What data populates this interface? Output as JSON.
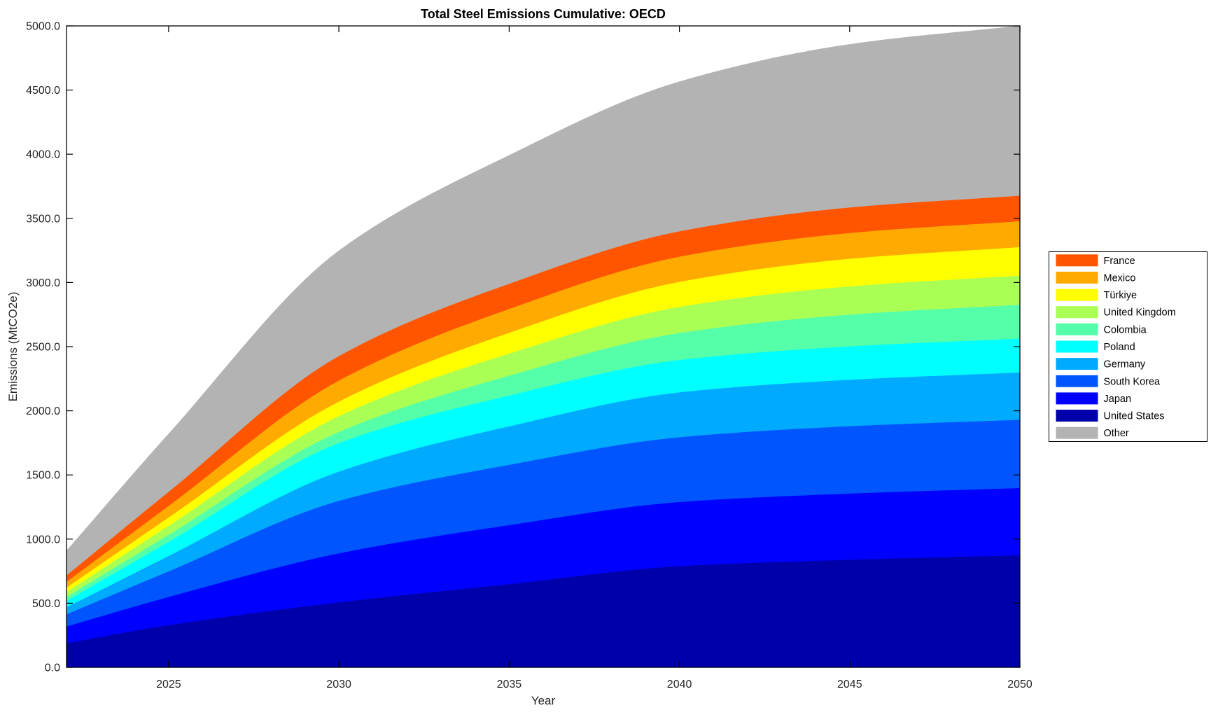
{
  "chart_data": {
    "type": "area",
    "stacked": true,
    "title": "Total Steel Emissions Cumulative: OECD",
    "xlabel": "Year",
    "ylabel": "Emissions (MtCO2e)",
    "xlim": [
      2022,
      2050
    ],
    "ylim": [
      0,
      5000
    ],
    "grid": false,
    "legend_position": "outside-right",
    "x": [
      2022,
      2025,
      2030,
      2035,
      2040,
      2045,
      2050
    ],
    "xtick_values": [
      2025,
      2030,
      2035,
      2040,
      2045,
      2050
    ],
    "xtick_labels": [
      "2025",
      "2030",
      "2035",
      "2040",
      "2045",
      "2050"
    ],
    "ytick_values": [
      0,
      500,
      1000,
      1500,
      2000,
      2500,
      3000,
      3500,
      4000,
      4500,
      5000
    ],
    "ytick_labels": [
      "0.0",
      "500.0",
      "1000.0",
      "1500.0",
      "2000.0",
      "2500.0",
      "3000.0",
      "3500.0",
      "4000.0",
      "4500.0",
      "5000.0"
    ],
    "series_bottom_to_top": [
      {
        "name": "United States",
        "color": "#0000AA",
        "values": [
          190,
          330,
          508,
          650,
          790,
          840,
          875
        ]
      },
      {
        "name": "Japan",
        "color": "#0000FF",
        "values": [
          130,
          220,
          382,
          460,
          500,
          516,
          524
        ]
      },
      {
        "name": "South Korea",
        "color": "#0055FF",
        "values": [
          95,
          200,
          409,
          470,
          505,
          525,
          532
        ]
      },
      {
        "name": "Germany",
        "color": "#00AAFF",
        "values": [
          55,
          120,
          228,
          300,
          350,
          362,
          369
        ]
      },
      {
        "name": "Poland",
        "color": "#00FFFF",
        "values": [
          50,
          110,
          222,
          240,
          252,
          260,
          264
        ]
      },
      {
        "name": "Colombia",
        "color": "#55FFAA",
        "values": [
          30,
          55,
          87,
          155,
          210,
          248,
          264
        ]
      },
      {
        "name": "United Kingdom",
        "color": "#AAFF55",
        "values": [
          38,
          70,
          124,
          172,
          204,
          220,
          227
        ]
      },
      {
        "name": "Türkiye",
        "color": "#FFFF00",
        "values": [
          35,
          65,
          113,
          162,
          195,
          215,
          222
        ]
      },
      {
        "name": "Mexico",
        "color": "#FFAA00",
        "values": [
          45,
          90,
          164,
          186,
          196,
          201,
          202
        ]
      },
      {
        "name": "France",
        "color": "#FF5500",
        "values": [
          50,
          110,
          191,
          196,
          198,
          199,
          199
        ]
      },
      {
        "name": "Other",
        "color": "#B3B3B3",
        "values": [
          190,
          450,
          819,
          1000,
          1165,
          1270,
          1322
        ]
      }
    ],
    "legend_order": [
      "France",
      "Mexico",
      "Türkiye",
      "United Kingdom",
      "Colombia",
      "Poland",
      "Germany",
      "South Korea",
      "Japan",
      "United States",
      "Other"
    ]
  },
  "colors": {
    "background": "#FFFFFF",
    "axis": "#000000",
    "tick_text": "#262626",
    "legend_border": "#000000"
  }
}
